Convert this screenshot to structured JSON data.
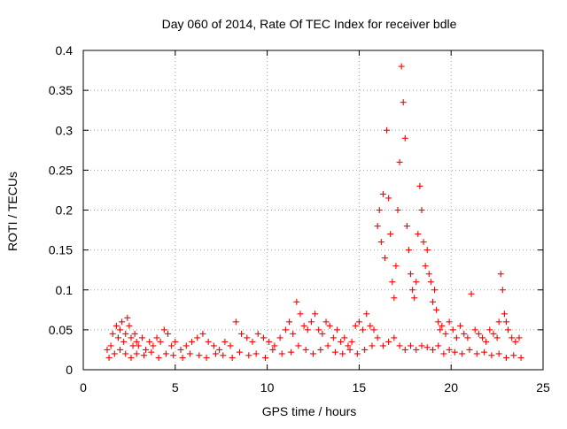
{
  "chart_data": {
    "type": "scatter",
    "title": "Day 060 of 2014, Rate Of TEC Index for receiver bdle",
    "xlabel": "GPS time / hours",
    "ylabel": "ROTI / TECUs",
    "xlim": [
      0,
      25
    ],
    "ylim": [
      0,
      0.4
    ],
    "xticks": [
      "0",
      "5",
      "10",
      "15",
      "20",
      "25"
    ],
    "yticks": [
      "0",
      "0.05",
      "0.1",
      "0.15",
      "0.2",
      "0.25",
      "0.3",
      "0.35",
      "0.4"
    ],
    "grid": true,
    "marker": "+",
    "color": "#ff0000",
    "series": [
      {
        "x": [
          1.3,
          1.5,
          1.6,
          1.8,
          1.9,
          2.0,
          2.1,
          2.2,
          2.3,
          2.4,
          2.5,
          2.6,
          2.7,
          2.8,
          2.9,
          3.0,
          3.2,
          3.4,
          3.6,
          3.8,
          4.0,
          4.2,
          4.4,
          4.6,
          4.8,
          5.0,
          5.3,
          5.6,
          5.9,
          6.2,
          6.5,
          6.8,
          7.1,
          7.4,
          7.7,
          8.0,
          8.3,
          8.6,
          8.9,
          9.2,
          9.5,
          9.8,
          10.1,
          10.4,
          10.7,
          11.0,
          11.2,
          11.4,
          11.6,
          11.8,
          12.0,
          12.2,
          12.4,
          12.6,
          12.8,
          13.0,
          13.2,
          13.4,
          13.6,
          13.8,
          14.0,
          14.2,
          14.4,
          14.6,
          14.8,
          15.0,
          15.2,
          15.4,
          15.6,
          15.8,
          16.0,
          16.1,
          16.2,
          16.3,
          16.4,
          16.5,
          16.6,
          16.7,
          16.8,
          16.9,
          17.0,
          17.1,
          17.2,
          17.3,
          17.4,
          17.5,
          17.6,
          17.7,
          17.8,
          17.9,
          18.0,
          18.1,
          18.2,
          18.3,
          18.4,
          18.5,
          18.6,
          18.7,
          18.8,
          18.9,
          19.0,
          19.1,
          19.2,
          19.3,
          19.4,
          19.5,
          19.7,
          19.9,
          20.1,
          20.3,
          20.5,
          20.7,
          20.9,
          21.1,
          21.3,
          21.5,
          21.7,
          21.9,
          22.1,
          22.3,
          22.5,
          22.6,
          22.7,
          22.8,
          22.9,
          23.0,
          23.1,
          23.3,
          23.5,
          23.7,
          1.4,
          1.7,
          2.0,
          2.3,
          2.6,
          2.9,
          3.3,
          3.7,
          4.1,
          4.5,
          4.9,
          5.4,
          5.8,
          6.3,
          6.7,
          7.2,
          7.6,
          8.1,
          8.5,
          9.0,
          9.4,
          9.9,
          10.3,
          10.8,
          11.3,
          11.7,
          12.1,
          12.5,
          12.9,
          13.3,
          13.7,
          14.1,
          14.5,
          14.9,
          15.3,
          15.7,
          16.0,
          16.3,
          16.6,
          16.9,
          17.2,
          17.5,
          17.8,
          18.1,
          18.4,
          18.7,
          19.0,
          19.3,
          19.6,
          19.9,
          20.2,
          20.6,
          21.0,
          21.4,
          21.8,
          22.2,
          22.6,
          23.0,
          23.4,
          23.8
        ],
        "y": [
          0.025,
          0.03,
          0.045,
          0.055,
          0.04,
          0.05,
          0.06,
          0.035,
          0.045,
          0.065,
          0.055,
          0.04,
          0.03,
          0.045,
          0.035,
          0.03,
          0.04,
          0.025,
          0.035,
          0.03,
          0.04,
          0.035,
          0.05,
          0.045,
          0.03,
          0.035,
          0.025,
          0.03,
          0.035,
          0.04,
          0.045,
          0.035,
          0.03,
          0.025,
          0.035,
          0.03,
          0.06,
          0.045,
          0.04,
          0.035,
          0.045,
          0.04,
          0.035,
          0.03,
          0.04,
          0.05,
          0.06,
          0.045,
          0.085,
          0.07,
          0.055,
          0.05,
          0.06,
          0.07,
          0.05,
          0.045,
          0.06,
          0.055,
          0.04,
          0.05,
          0.035,
          0.04,
          0.03,
          0.035,
          0.055,
          0.06,
          0.05,
          0.07,
          0.055,
          0.05,
          0.18,
          0.2,
          0.16,
          0.22,
          0.14,
          0.3,
          0.215,
          0.17,
          0.11,
          0.09,
          0.13,
          0.2,
          0.26,
          0.38,
          0.335,
          0.29,
          0.18,
          0.15,
          0.12,
          0.1,
          0.09,
          0.11,
          0.17,
          0.23,
          0.2,
          0.16,
          0.13,
          0.15,
          0.12,
          0.11,
          0.085,
          0.1,
          0.075,
          0.06,
          0.05,
          0.055,
          0.045,
          0.06,
          0.05,
          0.04,
          0.055,
          0.045,
          0.04,
          0.095,
          0.05,
          0.045,
          0.04,
          0.035,
          0.05,
          0.045,
          0.04,
          0.06,
          0.12,
          0.1,
          0.07,
          0.06,
          0.05,
          0.04,
          0.035,
          0.04,
          0.015,
          0.02,
          0.025,
          0.02,
          0.015,
          0.02,
          0.018,
          0.022,
          0.015,
          0.02,
          0.018,
          0.015,
          0.02,
          0.018,
          0.015,
          0.02,
          0.018,
          0.015,
          0.022,
          0.018,
          0.02,
          0.015,
          0.025,
          0.02,
          0.022,
          0.03,
          0.025,
          0.02,
          0.025,
          0.03,
          0.022,
          0.02,
          0.025,
          0.02,
          0.025,
          0.03,
          0.04,
          0.03,
          0.035,
          0.04,
          0.03,
          0.025,
          0.03,
          0.025,
          0.03,
          0.028,
          0.025,
          0.03,
          0.02,
          0.025,
          0.022,
          0.02,
          0.025,
          0.02,
          0.022,
          0.018,
          0.02,
          0.015,
          0.018,
          0.015
        ]
      }
    ]
  }
}
